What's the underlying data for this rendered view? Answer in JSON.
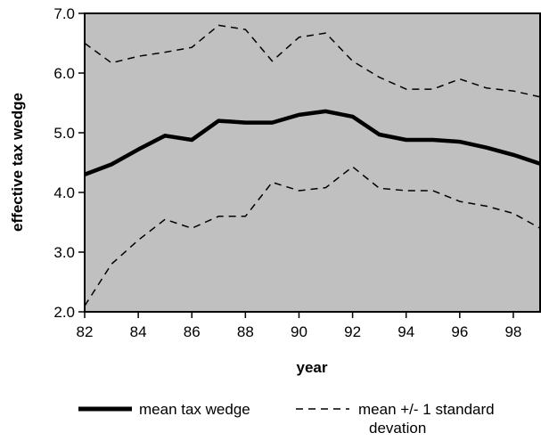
{
  "chart_data": {
    "type": "line",
    "title": "",
    "xlabel": "year",
    "ylabel": "effective tax wedge",
    "xlim": [
      82,
      99
    ],
    "ylim": [
      2.0,
      7.0
    ],
    "x_ticks": [
      82,
      84,
      86,
      88,
      90,
      92,
      94,
      96,
      98
    ],
    "x_tick_labels": [
      "82",
      "84",
      "86",
      "88",
      "90",
      "92",
      "94",
      "96",
      "98"
    ],
    "y_ticks": [
      2.0,
      3.0,
      4.0,
      5.0,
      6.0,
      7.0
    ],
    "y_tick_labels": [
      "2.0",
      "3.0",
      "4.0",
      "5.0",
      "6.0",
      "7.0"
    ],
    "grid": false,
    "plot_background": "#c0c0c0",
    "legend_position": "bottom",
    "x": [
      82,
      83,
      84,
      85,
      86,
      87,
      88,
      89,
      90,
      91,
      92,
      93,
      94,
      95,
      96,
      97,
      98,
      99
    ],
    "series": [
      {
        "name": "mean tax wedge",
        "style": "solid-thick",
        "color": "#000000",
        "values": [
          4.3,
          4.47,
          4.72,
          4.95,
          4.88,
          5.2,
          5.17,
          5.17,
          5.3,
          5.36,
          5.27,
          4.97,
          4.88,
          4.88,
          4.85,
          4.75,
          4.63,
          4.48
        ]
      },
      {
        "name": "mean +/- 1 standard deviation (upper)",
        "style": "dashed",
        "color": "#000000",
        "values": [
          6.5,
          6.17,
          6.28,
          6.35,
          6.43,
          6.8,
          6.73,
          6.2,
          6.6,
          6.67,
          6.2,
          5.93,
          5.73,
          5.73,
          5.9,
          5.75,
          5.7,
          5.6
        ]
      },
      {
        "name": "mean +/- 1 standard deviation (lower)",
        "style": "dashed",
        "color": "#000000",
        "values": [
          2.1,
          2.8,
          3.2,
          3.55,
          3.4,
          3.6,
          3.6,
          4.17,
          4.03,
          4.08,
          4.43,
          4.07,
          4.03,
          4.03,
          3.85,
          3.77,
          3.65,
          3.4
        ]
      }
    ],
    "legend": [
      {
        "label": "mean tax wedge",
        "style": "solid-thick"
      },
      {
        "label": "mean +/- 1 standard",
        "label_line2": "devation",
        "style": "dashed"
      }
    ]
  }
}
